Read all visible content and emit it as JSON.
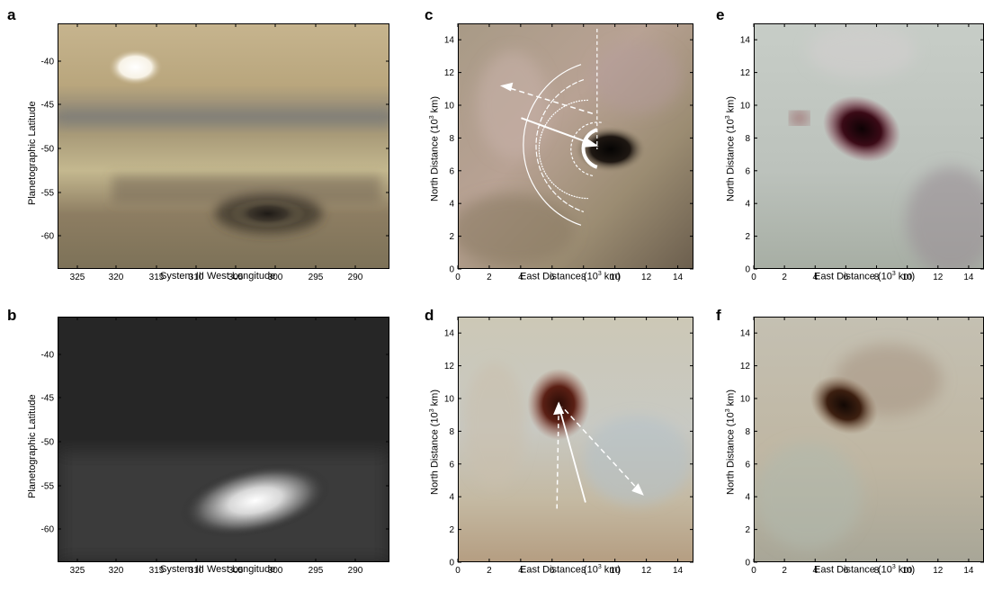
{
  "panels": [
    {
      "letter": "a",
      "xlabel": "System III West Longitude",
      "ylabel": "Planetographic Latitude",
      "xticks": [
        "325",
        "320",
        "315",
        "310",
        "305",
        "300",
        "295",
        "290"
      ],
      "yticks": [
        "-40",
        "-45",
        "-50",
        "-55",
        "-60"
      ]
    },
    {
      "letter": "b",
      "xlabel": "System III West Longitude",
      "ylabel": "Planetographic Latitude",
      "xticks": [
        "325",
        "320",
        "315",
        "310",
        "305",
        "300",
        "295",
        "290"
      ],
      "yticks": [
        "-40",
        "-45",
        "-50",
        "-55",
        "-60"
      ]
    },
    {
      "letter": "c",
      "xlabel_pre": "East Distance (10",
      "xlabel_sup": "3",
      "xlabel_post": " km)",
      "ylabel_pre": "North Distance (10",
      "ylabel_sup": "3",
      "ylabel_post": " km)",
      "xticks": [
        "0",
        "2",
        "4",
        "6",
        "8",
        "10",
        "12",
        "14"
      ],
      "yticks": [
        "0",
        "2",
        "4",
        "6",
        "8",
        "10",
        "12",
        "14"
      ]
    },
    {
      "letter": "d",
      "xlabel_pre": "East Distance (10",
      "xlabel_sup": "3",
      "xlabel_post": " km)",
      "ylabel_pre": "North Distance (10",
      "ylabel_sup": "3",
      "ylabel_post": " km)",
      "xticks": [
        "0",
        "2",
        "4",
        "6",
        "8",
        "10",
        "12",
        "14"
      ],
      "yticks": [
        "0",
        "2",
        "4",
        "6",
        "8",
        "10",
        "12",
        "14"
      ]
    },
    {
      "letter": "e",
      "xlabel_pre": "East Distance (10",
      "xlabel_sup": "3",
      "xlabel_post": " km)",
      "ylabel_pre": "North Distance (10",
      "ylabel_sup": "3",
      "ylabel_post": " km)",
      "xticks": [
        "0",
        "2",
        "4",
        "6",
        "8",
        "10",
        "12",
        "14"
      ],
      "yticks": [
        "0",
        "2",
        "4",
        "6",
        "8",
        "10",
        "12",
        "14"
      ]
    },
    {
      "letter": "f",
      "xlabel_pre": "East Distance (10",
      "xlabel_sup": "3",
      "xlabel_post": " km)",
      "ylabel_pre": "North Distance (10",
      "ylabel_sup": "3",
      "ylabel_post": " km)",
      "xticks": [
        "0",
        "2",
        "4",
        "6",
        "8",
        "10",
        "12",
        "14"
      ],
      "yticks": [
        "0",
        "2",
        "4",
        "6",
        "8",
        "10",
        "12",
        "14"
      ]
    }
  ]
}
